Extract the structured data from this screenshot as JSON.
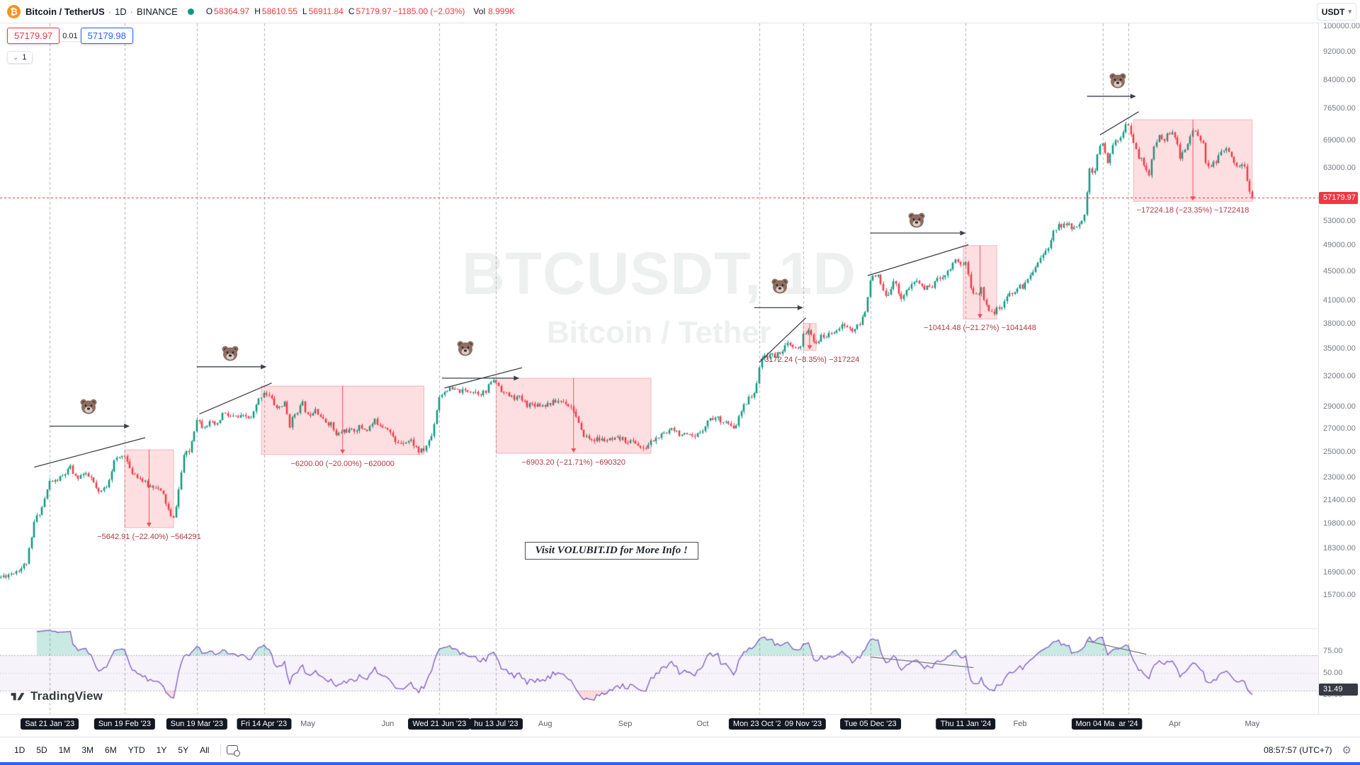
{
  "header": {
    "symbol_name": "Bitcoin / TetherUS",
    "separator": "·",
    "interval": "1D",
    "exchange": "BINANCE",
    "ohlc": {
      "o_label": "O",
      "o_value": "58364.97",
      "h_label": "H",
      "h_value": "58610.55",
      "l_label": "L",
      "l_value": "56911.84",
      "c_label": "C",
      "c_value": "57179.97",
      "change": "−1185.00 (−2.03%)"
    },
    "vol_label": "Vol",
    "vol_value": "8.999K",
    "currency_button": "USDT"
  },
  "trade_widget": {
    "sell_price": "57179.97",
    "spread": "0.01",
    "buy_price": "57179.98",
    "drawings_count": "1"
  },
  "watermark": {
    "line1": "BTCUSDT, 1D",
    "line2": "Bitcoin / Tether"
  },
  "note_box": {
    "text": "Visit VOLUBIT.ID for More Info !",
    "day": 203,
    "price": 18650
  },
  "price_axis": {
    "ticks": [
      "100000.00",
      "92000.00",
      "84000.00",
      "76500.00",
      "69000.00",
      "63000.00",
      "53000.00",
      "49000.00",
      "45000.00",
      "41000.00",
      "38000.00",
      "35000.00",
      "32000.00",
      "29000.00",
      "27000.00",
      "25000.00",
      "23000.00",
      "21400.00",
      "19800.00",
      "18300.00",
      "16900.00",
      "15700.00"
    ],
    "last_price": "57179.97"
  },
  "rsi_axis": {
    "ticks": [
      "75.00",
      "50.00",
      "25.00"
    ],
    "current": "31.49"
  },
  "time_axis": {
    "labels": [
      {
        "day": 19,
        "text": "Sat 21 Jan '23",
        "highlighted": true
      },
      {
        "day": 48,
        "text": "Sun 19 Feb '23",
        "highlighted": true
      },
      {
        "day": 76,
        "text": "Sun 19 Mar '23",
        "highlighted": true
      },
      {
        "day": 102,
        "text": "Fri 14 Apr '23",
        "highlighted": true
      },
      {
        "day": 119,
        "text": "May",
        "highlighted": false
      },
      {
        "day": 150,
        "text": "Jun",
        "highlighted": false
      },
      {
        "day": 170,
        "text": "Wed 21 Jun '23",
        "highlighted": true
      },
      {
        "day": 192,
        "text": "hu 13 Jul '23",
        "highlighted": true
      },
      {
        "day": 211,
        "text": "Aug",
        "highlighted": false
      },
      {
        "day": 242,
        "text": "Sep",
        "highlighted": false
      },
      {
        "day": 272,
        "text": "Oct",
        "highlighted": false
      },
      {
        "day": 294,
        "text": "Mon 23 Oct '23",
        "highlighted": true
      },
      {
        "day": 311,
        "text": "09 Nov '23",
        "highlighted": true
      },
      {
        "day": 337,
        "text": "Tue 05 Dec '23",
        "highlighted": true
      },
      {
        "day": 374,
        "text": "Thu 11 Jan '24",
        "highlighted": true
      },
      {
        "day": 395,
        "text": "Feb",
        "highlighted": false
      },
      {
        "day": 427,
        "text": "Mon 04 Mar '24",
        "highlighted": true
      },
      {
        "day": 437,
        "text": "ar '24",
        "highlighted": true
      },
      {
        "day": 455,
        "text": "Apr",
        "highlighted": false
      },
      {
        "day": 485,
        "text": "May",
        "highlighted": false
      }
    ]
  },
  "bottom_toolbar": {
    "ranges": [
      "1D",
      "5D",
      "1M",
      "3M",
      "6M",
      "YTD",
      "1Y",
      "5Y",
      "All"
    ],
    "clock": "08:57:57 (UTC+7)"
  },
  "logo_text": "TradingView",
  "colors": {
    "up": "#089981",
    "down": "#f23645",
    "buy": "#2962ff",
    "axis_text": "#787b86",
    "badge_bg": "#131722",
    "rsi_line": "#7e57c2",
    "range_tool": "#f23645",
    "annotation": "#3c404b"
  },
  "chart_data": {
    "type": "candlestick",
    "symbol": "BTCUSDT",
    "interval": "1D",
    "exchange": "BINANCE",
    "scale": "log",
    "days_total": 486,
    "noise_seed": 11,
    "y_domain": [
      15700,
      100000
    ],
    "last_candle": [
      58364.97,
      58610.55,
      56911.84,
      57179.97
    ],
    "last_price": 57179.97,
    "waypoints": [
      [
        0,
        16650
      ],
      [
        4,
        16850
      ],
      [
        8,
        17150
      ],
      [
        10,
        17450
      ],
      [
        12,
        18850
      ],
      [
        13,
        19900
      ],
      [
        16,
        20900
      ],
      [
        19,
        22700
      ],
      [
        21,
        22720
      ],
      [
        24,
        23100
      ],
      [
        27,
        23750
      ],
      [
        29,
        23000
      ],
      [
        32,
        23250
      ],
      [
        35,
        22950
      ],
      [
        38,
        21800
      ],
      [
        41,
        22400
      ],
      [
        44,
        24250
      ],
      [
        48,
        24850
      ],
      [
        50,
        23550
      ],
      [
        53,
        23150
      ],
      [
        57,
        22400
      ],
      [
        60,
        22400
      ],
      [
        63,
        21700
      ],
      [
        66,
        20200
      ],
      [
        67,
        20100
      ],
      [
        69,
        22100
      ],
      [
        71,
        24750
      ],
      [
        73,
        25000
      ],
      [
        76,
        27950
      ],
      [
        78,
        27250
      ],
      [
        81,
        27450
      ],
      [
        84,
        27250
      ],
      [
        86,
        28350
      ],
      [
        89,
        28050
      ],
      [
        92,
        27950
      ],
      [
        95,
        28050
      ],
      [
        97,
        27850
      ],
      [
        100,
        29650
      ],
      [
        102,
        30450
      ],
      [
        104,
        30000
      ],
      [
        107,
        28850
      ],
      [
        110,
        29250
      ],
      [
        112,
        27300
      ],
      [
        114,
        28350
      ],
      [
        117,
        29250
      ],
      [
        119,
        28100
      ],
      [
        122,
        28900
      ],
      [
        125,
        27700
      ],
      [
        128,
        27400
      ],
      [
        130,
        26350
      ],
      [
        133,
        26850
      ],
      [
        136,
        26750
      ],
      [
        139,
        27100
      ],
      [
        142,
        26900
      ],
      [
        145,
        27650
      ],
      [
        148,
        27250
      ],
      [
        150,
        27100
      ],
      [
        153,
        25750
      ],
      [
        156,
        25900
      ],
      [
        159,
        25950
      ],
      [
        162,
        25050
      ],
      [
        164,
        25150
      ],
      [
        167,
        26350
      ],
      [
        170,
        30000
      ],
      [
        173,
        30700
      ],
      [
        176,
        30550
      ],
      [
        179,
        30450
      ],
      [
        182,
        30600
      ],
      [
        185,
        30350
      ],
      [
        188,
        30350
      ],
      [
        190,
        31500
      ],
      [
        192,
        31400
      ],
      [
        195,
        30300
      ],
      [
        198,
        29900
      ],
      [
        201,
        29800
      ],
      [
        204,
        29200
      ],
      [
        207,
        29250
      ],
      [
        210,
        29150
      ],
      [
        213,
        29300
      ],
      [
        216,
        29550
      ],
      [
        219,
        29400
      ],
      [
        222,
        28700
      ],
      [
        225,
        26650
      ],
      [
        228,
        26100
      ],
      [
        231,
        26050
      ],
      [
        234,
        26000
      ],
      [
        237,
        25950
      ],
      [
        240,
        26100
      ],
      [
        243,
        25900
      ],
      [
        246,
        25800
      ],
      [
        249,
        25150
      ],
      [
        252,
        25850
      ],
      [
        255,
        26250
      ],
      [
        258,
        26550
      ],
      [
        260,
        27200
      ],
      [
        263,
        26550
      ],
      [
        266,
        26300
      ],
      [
        269,
        26150
      ],
      [
        272,
        27000
      ],
      [
        275,
        27950
      ],
      [
        278,
        27900
      ],
      [
        281,
        27600
      ],
      [
        284,
        26850
      ],
      [
        287,
        28500
      ],
      [
        290,
        30000
      ],
      [
        292,
        30050
      ],
      [
        294,
        33100
      ],
      [
        296,
        34200
      ],
      [
        298,
        34400
      ],
      [
        300,
        34100
      ],
      [
        302,
        34700
      ],
      [
        305,
        35450
      ],
      [
        308,
        34950
      ],
      [
        310,
        35050
      ],
      [
        311,
        36700
      ],
      [
        313,
        37300
      ],
      [
        315,
        35550
      ],
      [
        318,
        36300
      ],
      [
        321,
        36600
      ],
      [
        324,
        37400
      ],
      [
        327,
        37750
      ],
      [
        330,
        37100
      ],
      [
        333,
        37850
      ],
      [
        335,
        39450
      ],
      [
        337,
        44050
      ],
      [
        340,
        44200
      ],
      [
        343,
        41250
      ],
      [
        346,
        43750
      ],
      [
        349,
        41350
      ],
      [
        352,
        42650
      ],
      [
        355,
        43700
      ],
      [
        358,
        42550
      ],
      [
        361,
        43000
      ],
      [
        364,
        44200
      ],
      [
        367,
        44950
      ],
      [
        370,
        46950
      ],
      [
        372,
        46100
      ],
      [
        374,
        46300
      ],
      [
        376,
        42800
      ],
      [
        378,
        41500
      ],
      [
        380,
        42600
      ],
      [
        382,
        40100
      ],
      [
        385,
        39550
      ],
      [
        388,
        40000
      ],
      [
        391,
        41800
      ],
      [
        394,
        42600
      ],
      [
        397,
        43100
      ],
      [
        400,
        45300
      ],
      [
        403,
        47150
      ],
      [
        406,
        48300
      ],
      [
        408,
        51800
      ],
      [
        411,
        52250
      ],
      [
        414,
        52300
      ],
      [
        417,
        51700
      ],
      [
        420,
        54500
      ],
      [
        422,
        62500
      ],
      [
        424,
        62400
      ],
      [
        425,
        66100
      ],
      [
        427,
        68300
      ],
      [
        429,
        63800
      ],
      [
        431,
        68300
      ],
      [
        433,
        69000
      ],
      [
        435,
        71450
      ],
      [
        436,
        73100
      ],
      [
        437,
        73000
      ],
      [
        439,
        67850
      ],
      [
        441,
        65500
      ],
      [
        443,
        63800
      ],
      [
        445,
        61900
      ],
      [
        447,
        67200
      ],
      [
        449,
        69900
      ],
      [
        451,
        69400
      ],
      [
        453,
        70700
      ],
      [
        455,
        69700
      ],
      [
        457,
        65450
      ],
      [
        459,
        66850
      ],
      [
        461,
        69350
      ],
      [
        462,
        71600
      ],
      [
        464,
        70600
      ],
      [
        466,
        67800
      ],
      [
        467,
        63900
      ],
      [
        469,
        63800
      ],
      [
        471,
        64000
      ],
      [
        473,
        66400
      ],
      [
        476,
        66800
      ],
      [
        478,
        64000
      ],
      [
        480,
        63850
      ],
      [
        482,
        62900
      ],
      [
        483,
        60600
      ],
      [
        484,
        58400
      ],
      [
        485,
        57180
      ]
    ],
    "indicator": {
      "name": "RSI",
      "length": 14,
      "band": [
        30,
        70
      ],
      "current": 31.49
    },
    "vlines_days": [
      19,
      48,
      76,
      102,
      170,
      192,
      294,
      311,
      337,
      374,
      427,
      437
    ],
    "annotations": {
      "bears": [
        {
          "day": 34,
          "price": 29000
        },
        {
          "day": 89,
          "price": 34500
        },
        {
          "day": 180,
          "price": 35000
        },
        {
          "day": 302,
          "price": 42900
        },
        {
          "day": 355,
          "price": 53200
        },
        {
          "day": 433,
          "price": 83800
        }
      ],
      "arrows": [
        {
          "d1": 19,
          "d2": 50,
          "price": 27200
        },
        {
          "d1": 76,
          "d2": 103,
          "price": 33000
        },
        {
          "d1": 171,
          "d2": 201,
          "price": 31800
        },
        {
          "d1": 292,
          "d2": 311,
          "price": 40000
        },
        {
          "d1": 337,
          "d2": 374,
          "price": 51000
        },
        {
          "d1": 421,
          "d2": 440,
          "price": 79600
        }
      ],
      "trendlines": [
        {
          "d1": 13,
          "p1": 23800,
          "d2": 56,
          "p2": 26200
        },
        {
          "d1": 77,
          "p1": 28300,
          "d2": 105,
          "p2": 31300
        },
        {
          "d1": 172,
          "p1": 30800,
          "d2": 202,
          "p2": 32900
        },
        {
          "d1": 294,
          "p1": 33500,
          "d2": 312,
          "p2": 38700
        },
        {
          "d1": 336,
          "p1": 44400,
          "d2": 375,
          "p2": 49100
        },
        {
          "d1": 426,
          "p1": 70200,
          "d2": 441,
          "p2": 75700
        }
      ],
      "range_boxes": [
        {
          "d1": 48,
          "d2": 67,
          "top": 25190.5,
          "bottom": 19547.59,
          "label": "−5642.91 (−22.40%) −564291"
        },
        {
          "d1": 101,
          "d2": 164,
          "top": 31000.0,
          "bottom": 24800.0,
          "label": "−6200.00 (−20.00%) −620000"
        },
        {
          "d1": 192,
          "d2": 252,
          "top": 31800.0,
          "bottom": 24896.8,
          "label": "−6903.20 (−21.71%) −690320"
        },
        {
          "d1": 311,
          "d2": 316,
          "top": 37991.0,
          "bottom": 34818.76,
          "label": "−3172.24 (−8.35%) −317224"
        },
        {
          "d1": 373,
          "d2": 386,
          "top": 48960.0,
          "bottom": 38545.52,
          "label": "−10414.48 (−21.27%) −1041448"
        },
        {
          "d1": 439,
          "d2": 485,
          "top": 73765.0,
          "bottom": 56540.82,
          "label": "−17224.18 (−23.35%) −1722418"
        }
      ],
      "rsi_trendlines": [
        {
          "d1": 337,
          "v1": 68,
          "d2": 377,
          "v2": 56
        },
        {
          "d1": 421,
          "v1": 86,
          "d2": 444,
          "v2": 71
        }
      ]
    }
  }
}
